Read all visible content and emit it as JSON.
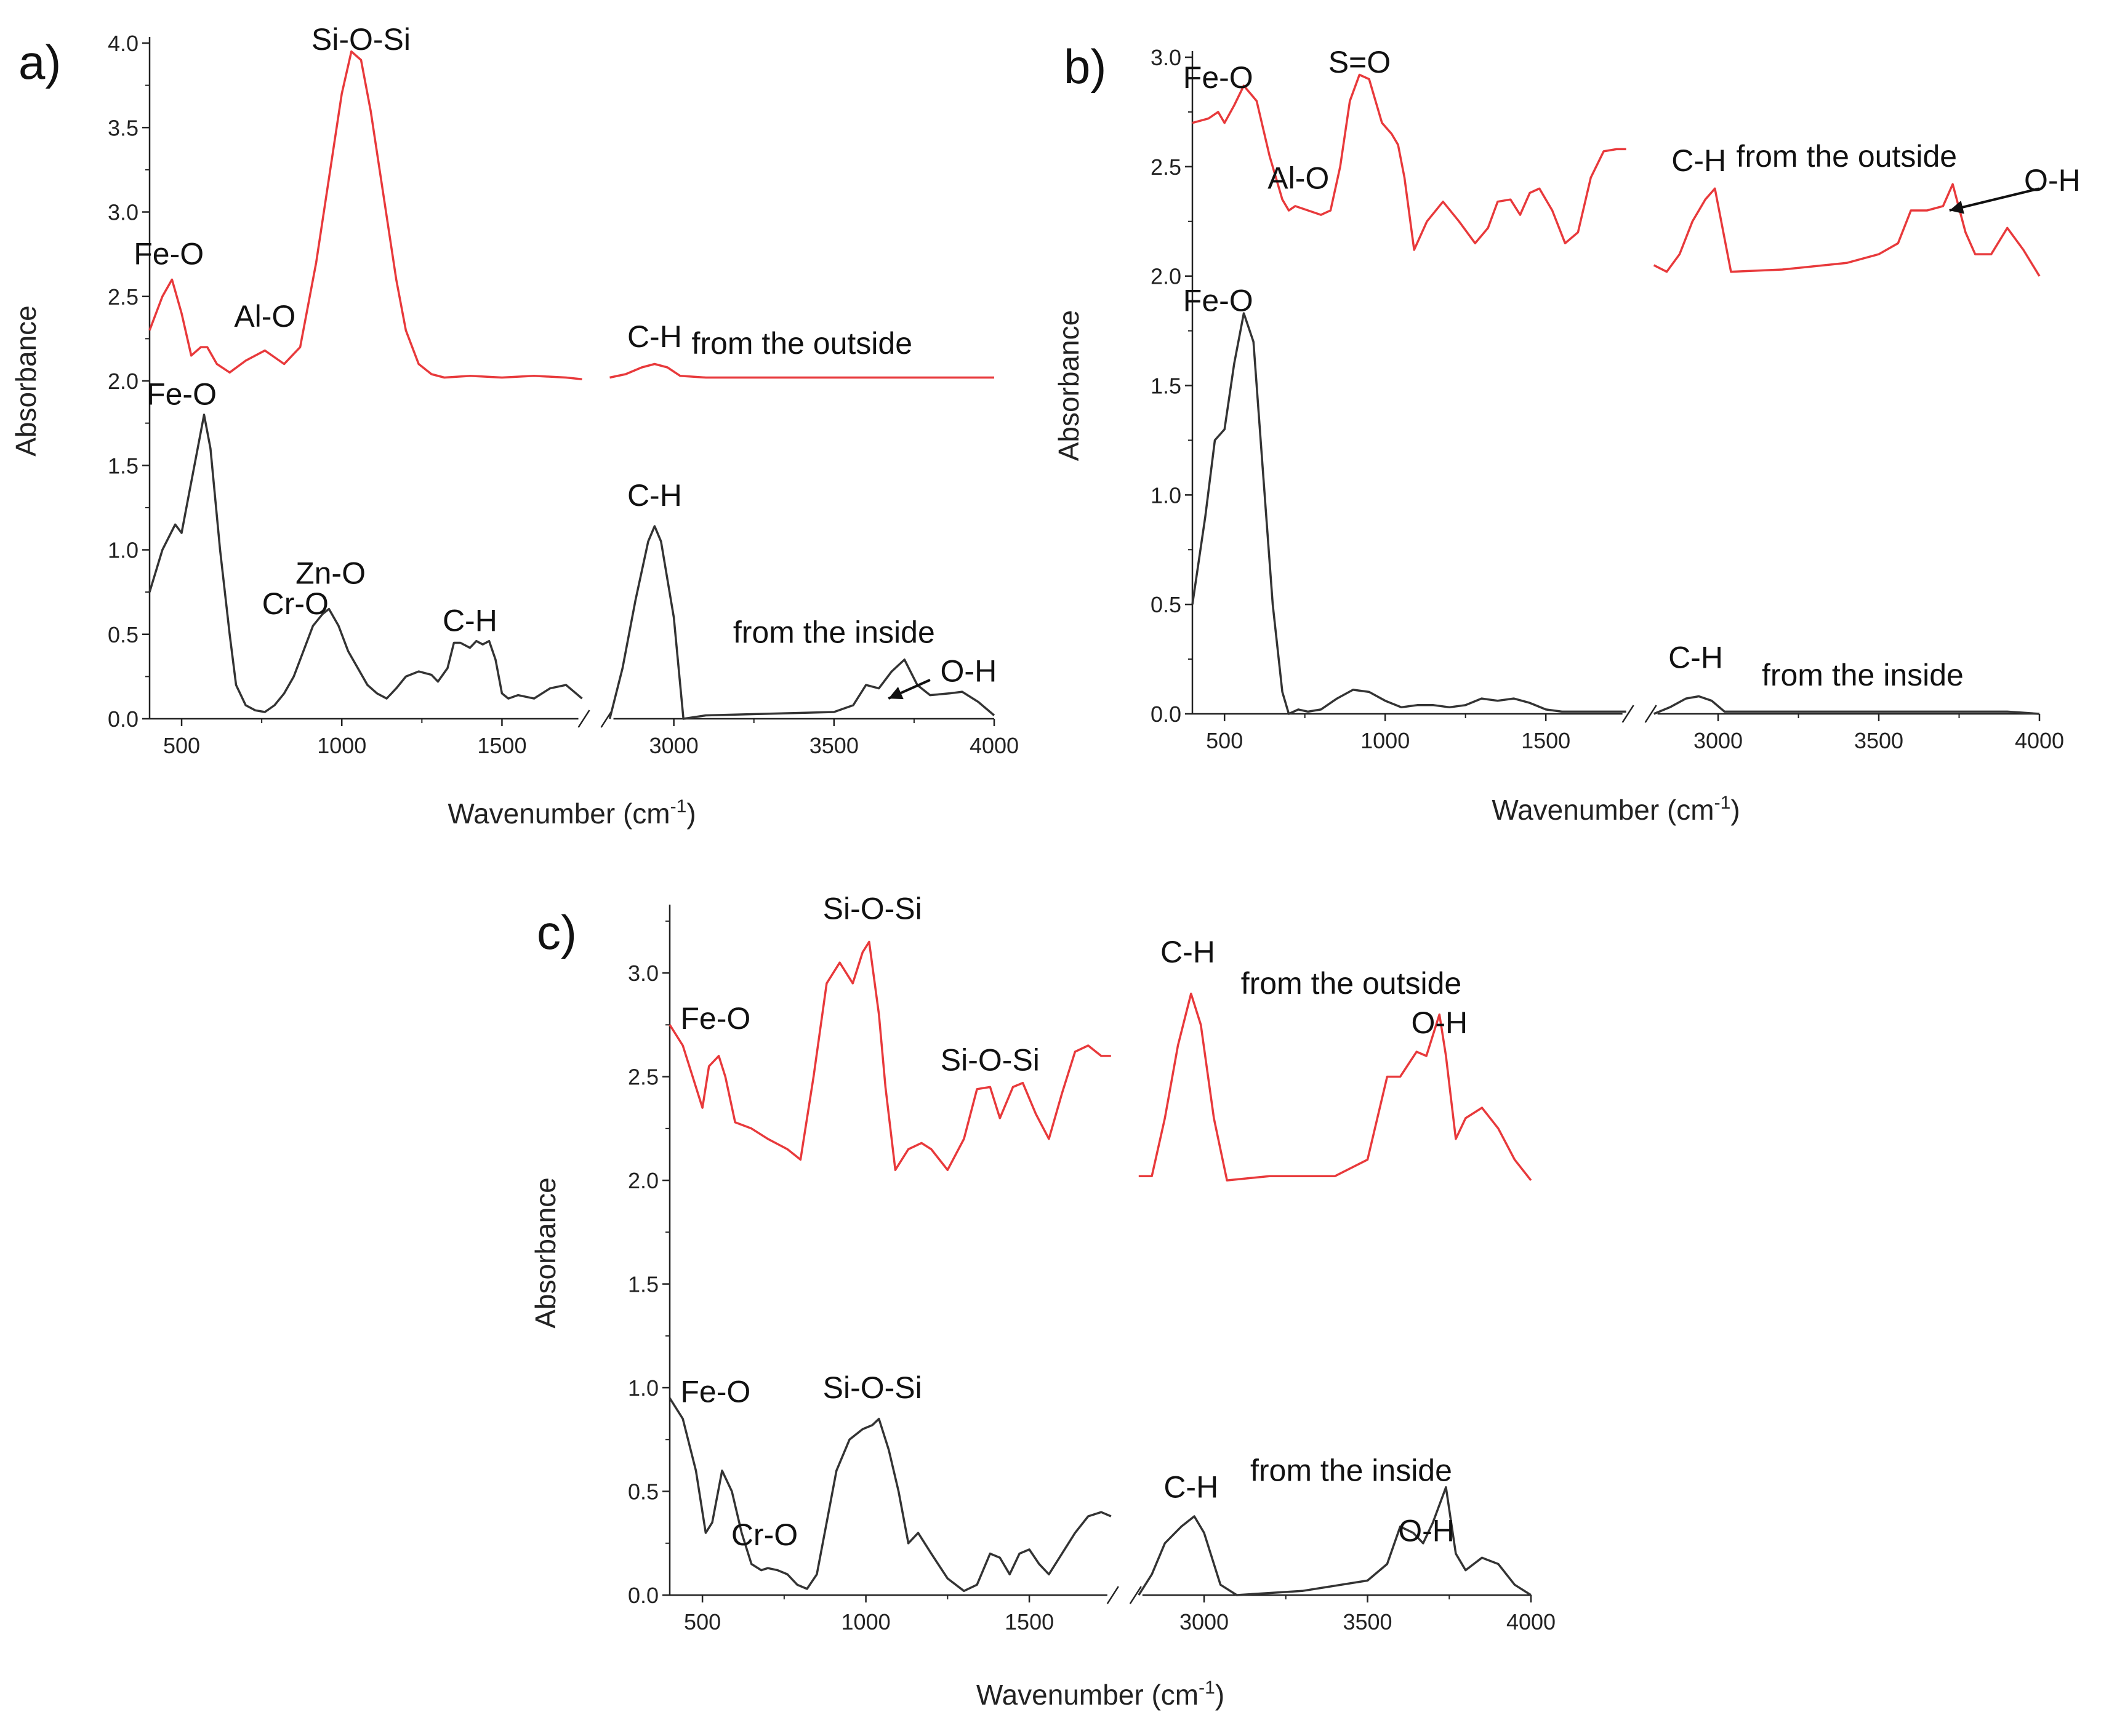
{
  "chart_data": [
    {
      "panel": "a)",
      "type": "line",
      "xlabel": "Wavenumber (cm",
      "xlabel_sup": "-1",
      "xlabel_close": ")",
      "ylabel": "Absorbance",
      "xlim": [
        400,
        4000
      ],
      "ylim": [
        0,
        4
      ],
      "axis_break": [
        1750,
        2800
      ],
      "xticks": [
        "500",
        "1000",
        "1500",
        "3000",
        "3500",
        "4000"
      ],
      "yticks": [
        "0.0",
        "0.5",
        "1.0",
        "1.5",
        "2.0",
        "2.5",
        "3.0",
        "3.5",
        "4.0"
      ],
      "series": [
        {
          "name": "from the outside",
          "color": "#e8393b",
          "x": [
            400,
            440,
            470,
            500,
            530,
            560,
            580,
            610,
            650,
            700,
            760,
            820,
            870,
            920,
            960,
            1000,
            1030,
            1060,
            1090,
            1130,
            1170,
            1200,
            1240,
            1280,
            1320,
            1400,
            1500,
            1600,
            1700,
            1750,
            2800,
            2850,
            2900,
            2940,
            2980,
            3020,
            3100,
            3300,
            3500,
            3700,
            3900,
            4000
          ],
          "y": [
            2.3,
            2.5,
            2.6,
            2.4,
            2.15,
            2.2,
            2.2,
            2.1,
            2.05,
            2.12,
            2.18,
            2.1,
            2.2,
            2.7,
            3.2,
            3.7,
            3.95,
            3.9,
            3.6,
            3.1,
            2.6,
            2.3,
            2.1,
            2.04,
            2.02,
            2.03,
            2.02,
            2.03,
            2.02,
            2.01,
            2.02,
            2.04,
            2.08,
            2.1,
            2.08,
            2.03,
            2.02,
            2.02,
            2.02,
            2.02,
            2.02,
            2.02
          ]
        },
        {
          "name": "from the inside",
          "color": "#333333",
          "x": [
            400,
            440,
            480,
            500,
            520,
            550,
            570,
            590,
            620,
            650,
            670,
            700,
            730,
            760,
            790,
            820,
            850,
            880,
            910,
            940,
            960,
            990,
            1020,
            1050,
            1080,
            1110,
            1140,
            1170,
            1200,
            1240,
            1280,
            1300,
            1330,
            1350,
            1370,
            1400,
            1420,
            1440,
            1460,
            1480,
            1500,
            1520,
            1550,
            1600,
            1650,
            1700,
            1750,
            2800,
            2840,
            2880,
            2920,
            2940,
            2960,
            3000,
            3030,
            3100,
            3300,
            3500,
            3560,
            3600,
            3640,
            3680,
            3720,
            3760,
            3800,
            3860,
            3900,
            3950,
            4000
          ],
          "y": [
            0.75,
            1.0,
            1.15,
            1.1,
            1.3,
            1.6,
            1.8,
            1.6,
            1.0,
            0.5,
            0.2,
            0.08,
            0.05,
            0.04,
            0.08,
            0.15,
            0.25,
            0.4,
            0.55,
            0.62,
            0.65,
            0.55,
            0.4,
            0.3,
            0.2,
            0.15,
            0.12,
            0.18,
            0.25,
            0.28,
            0.26,
            0.22,
            0.3,
            0.45,
            0.45,
            0.42,
            0.46,
            0.44,
            0.46,
            0.35,
            0.15,
            0.12,
            0.14,
            0.12,
            0.18,
            0.2,
            0.12,
            0.0,
            0.3,
            0.7,
            1.05,
            1.14,
            1.05,
            0.6,
            0.0,
            0.02,
            0.03,
            0.04,
            0.08,
            0.2,
            0.18,
            0.28,
            0.35,
            0.2,
            0.14,
            0.15,
            0.16,
            0.1,
            0.02
          ]
        }
      ],
      "annotations": [
        {
          "text": "Fe-O",
          "x": 460,
          "y": 2.69
        },
        {
          "text": "Al-O",
          "x": 760,
          "y": 2.32
        },
        {
          "text": "Si-O-Si",
          "x": 1060,
          "y": 3.96
        },
        {
          "text": "C-H",
          "x": 2940,
          "y": 2.2
        },
        {
          "text": "from the outside",
          "x": 3400,
          "y": 2.16
        },
        {
          "text": "Fe-O",
          "x": 500,
          "y": 1.86
        },
        {
          "text": "C-H",
          "x": 2940,
          "y": 1.26
        },
        {
          "text": "Zn-O",
          "x": 965,
          "y": 0.8
        },
        {
          "text": "Cr-O",
          "x": 855,
          "y": 0.62
        },
        {
          "text": "C-H",
          "x": 1400,
          "y": 0.52
        },
        {
          "text": "from the inside",
          "x": 3500,
          "y": 0.45
        },
        {
          "text": "O-H",
          "x": 3920,
          "y": 0.22
        }
      ],
      "arrow": {
        "from": [
          3800,
          0.23
        ],
        "to": [
          3670,
          0.12
        ]
      }
    },
    {
      "panel": "b)",
      "type": "line",
      "xlabel": "Wavenumber (cm",
      "xlabel_sup": "-1",
      "xlabel_close": ")",
      "ylabel": "Absorbance",
      "xlim": [
        400,
        4000
      ],
      "ylim": [
        0,
        3
      ],
      "axis_break": [
        1750,
        2800
      ],
      "xticks": [
        "500",
        "1000",
        "1500",
        "3000",
        "3500",
        "4000"
      ],
      "yticks": [
        "0.0",
        "0.5",
        "1.0",
        "1.5",
        "2.0",
        "2.5",
        "3.0"
      ],
      "series": [
        {
          "name": "from the outside",
          "color": "#e8393b",
          "x": [
            400,
            450,
            480,
            500,
            530,
            560,
            600,
            640,
            680,
            700,
            720,
            760,
            800,
            830,
            860,
            890,
            920,
            950,
            990,
            1020,
            1040,
            1060,
            1090,
            1130,
            1180,
            1230,
            1280,
            1320,
            1350,
            1390,
            1420,
            1450,
            1480,
            1520,
            1560,
            1600,
            1640,
            1680,
            1720,
            1750,
            2800,
            2840,
            2880,
            2920,
            2960,
            2990,
            3040,
            3200,
            3400,
            3500,
            3560,
            3600,
            3650,
            3700,
            3730,
            3770,
            3800,
            3850,
            3900,
            3950,
            4000
          ],
          "y": [
            2.7,
            2.72,
            2.75,
            2.7,
            2.78,
            2.87,
            2.8,
            2.55,
            2.35,
            2.3,
            2.32,
            2.3,
            2.28,
            2.3,
            2.5,
            2.8,
            2.92,
            2.9,
            2.7,
            2.65,
            2.6,
            2.45,
            2.12,
            2.25,
            2.34,
            2.25,
            2.15,
            2.22,
            2.34,
            2.35,
            2.28,
            2.38,
            2.4,
            2.3,
            2.15,
            2.2,
            2.45,
            2.57,
            2.58,
            2.58,
            2.05,
            2.02,
            2.1,
            2.25,
            2.35,
            2.4,
            2.02,
            2.03,
            2.06,
            2.1,
            2.15,
            2.3,
            2.3,
            2.32,
            2.42,
            2.2,
            2.1,
            2.1,
            2.22,
            2.12,
            2.0
          ]
        },
        {
          "name": "from the inside",
          "color": "#333333",
          "x": [
            400,
            440,
            470,
            500,
            530,
            560,
            590,
            620,
            650,
            680,
            700,
            730,
            760,
            800,
            850,
            900,
            950,
            1000,
            1050,
            1100,
            1150,
            1200,
            1250,
            1300,
            1350,
            1400,
            1450,
            1500,
            1550,
            1600,
            1700,
            1750,
            2800,
            2850,
            2900,
            2940,
            2980,
            3020,
            3100,
            3300,
            3500,
            3700,
            3900,
            4000
          ],
          "y": [
            0.5,
            0.9,
            1.25,
            1.3,
            1.6,
            1.83,
            1.7,
            1.1,
            0.5,
            0.1,
            0.0,
            0.02,
            0.01,
            0.02,
            0.07,
            0.11,
            0.1,
            0.06,
            0.03,
            0.04,
            0.04,
            0.03,
            0.04,
            0.07,
            0.06,
            0.07,
            0.05,
            0.02,
            0.01,
            0.01,
            0.01,
            0.01,
            0.0,
            0.03,
            0.07,
            0.08,
            0.06,
            0.01,
            0.01,
            0.01,
            0.01,
            0.01,
            0.01,
            0.0
          ]
        }
      ],
      "annotations": [
        {
          "text": "Fe-O",
          "x": 480,
          "y": 2.86
        },
        {
          "text": "S=O",
          "x": 920,
          "y": 2.93
        },
        {
          "text": "Al-O",
          "x": 730,
          "y": 2.4
        },
        {
          "text": "C-H",
          "x": 2940,
          "y": 2.48
        },
        {
          "text": "from the outside",
          "x": 3400,
          "y": 2.5
        },
        {
          "text": "O-H",
          "x": 4040,
          "y": 2.39
        },
        {
          "text": "Fe-O",
          "x": 480,
          "y": 1.84
        },
        {
          "text": "C-H",
          "x": 2930,
          "y": 0.21
        },
        {
          "text": "from the inside",
          "x": 3450,
          "y": 0.13
        }
      ],
      "arrow": {
        "from": [
          4000,
          2.4
        ],
        "to": [
          3720,
          2.3
        ]
      }
    },
    {
      "panel": "c)",
      "type": "line",
      "xlabel": "Wavenumber (cm",
      "xlabel_sup": "-1",
      "xlabel_close": ")",
      "ylabel": "Absorbance",
      "xlim": [
        400,
        4000
      ],
      "ylim": [
        0,
        3.3
      ],
      "axis_break": [
        1750,
        2800
      ],
      "xticks": [
        "500",
        "1000",
        "1500",
        "3000",
        "3500",
        "4000"
      ],
      "yticks": [
        "0.0",
        "0.5",
        "1.0",
        "1.5",
        "2.0",
        "2.5",
        "3.0"
      ],
      "series": [
        {
          "name": "from the outside",
          "color": "#e8393b",
          "x": [
            400,
            440,
            470,
            500,
            520,
            550,
            570,
            600,
            650,
            700,
            760,
            800,
            840,
            880,
            920,
            960,
            990,
            1010,
            1040,
            1060,
            1090,
            1130,
            1170,
            1200,
            1250,
            1300,
            1340,
            1380,
            1410,
            1450,
            1480,
            1520,
            1560,
            1600,
            1640,
            1680,
            1720,
            1750,
            2800,
            2840,
            2880,
            2920,
            2960,
            2990,
            3030,
            3070,
            3200,
            3400,
            3500,
            3560,
            3600,
            3650,
            3680,
            3720,
            3740,
            3770,
            3800,
            3850,
            3900,
            3950,
            4000
          ],
          "y": [
            2.75,
            2.65,
            2.5,
            2.35,
            2.55,
            2.6,
            2.5,
            2.28,
            2.25,
            2.2,
            2.15,
            2.1,
            2.5,
            2.95,
            3.05,
            2.95,
            3.1,
            3.15,
            2.8,
            2.45,
            2.05,
            2.15,
            2.18,
            2.15,
            2.05,
            2.2,
            2.44,
            2.45,
            2.3,
            2.45,
            2.47,
            2.32,
            2.2,
            2.42,
            2.62,
            2.65,
            2.6,
            2.6,
            2.02,
            2.02,
            2.3,
            2.65,
            2.9,
            2.75,
            2.3,
            2.0,
            2.02,
            2.02,
            2.1,
            2.5,
            2.5,
            2.62,
            2.6,
            2.8,
            2.6,
            2.2,
            2.3,
            2.35,
            2.25,
            2.1,
            2.0
          ]
        },
        {
          "name": "from the inside",
          "color": "#333333",
          "x": [
            400,
            440,
            480,
            510,
            530,
            560,
            590,
            620,
            650,
            680,
            700,
            730,
            760,
            790,
            820,
            850,
            880,
            910,
            950,
            990,
            1020,
            1040,
            1070,
            1100,
            1130,
            1160,
            1200,
            1250,
            1300,
            1340,
            1380,
            1410,
            1440,
            1470,
            1500,
            1530,
            1560,
            1600,
            1640,
            1680,
            1720,
            1750,
            2800,
            2840,
            2880,
            2930,
            2970,
            3000,
            3050,
            3100,
            3300,
            3500,
            3560,
            3600,
            3640,
            3670,
            3700,
            3740,
            3770,
            3800,
            3850,
            3900,
            3950,
            4000
          ],
          "y": [
            0.95,
            0.85,
            0.6,
            0.3,
            0.35,
            0.6,
            0.5,
            0.3,
            0.15,
            0.12,
            0.13,
            0.12,
            0.1,
            0.05,
            0.03,
            0.1,
            0.35,
            0.6,
            0.75,
            0.8,
            0.82,
            0.85,
            0.7,
            0.5,
            0.25,
            0.3,
            0.2,
            0.08,
            0.02,
            0.05,
            0.2,
            0.18,
            0.1,
            0.2,
            0.22,
            0.15,
            0.1,
            0.2,
            0.3,
            0.38,
            0.4,
            0.38,
            0.0,
            0.1,
            0.25,
            0.33,
            0.38,
            0.3,
            0.05,
            0.0,
            0.02,
            0.07,
            0.15,
            0.33,
            0.3,
            0.25,
            0.35,
            0.52,
            0.2,
            0.12,
            0.18,
            0.15,
            0.05,
            0.0
          ]
        }
      ],
      "annotations": [
        {
          "text": "Fe-O",
          "x": 540,
          "y": 2.73
        },
        {
          "text": "Si-O-Si",
          "x": 1020,
          "y": 3.26
        },
        {
          "text": "Si-O-Si",
          "x": 1380,
          "y": 2.53
        },
        {
          "text": "C-H",
          "x": 2950,
          "y": 3.05
        },
        {
          "text": "from the outside",
          "x": 3450,
          "y": 2.9
        },
        {
          "text": "O-H",
          "x": 3720,
          "y": 2.71
        },
        {
          "text": "Fe-O",
          "x": 540,
          "y": 0.93
        },
        {
          "text": "Si-O-Si",
          "x": 1020,
          "y": 0.95
        },
        {
          "text": "Cr-O",
          "x": 690,
          "y": 0.24
        },
        {
          "text": "C-H",
          "x": 2960,
          "y": 0.47
        },
        {
          "text": "from the inside",
          "x": 3450,
          "y": 0.55
        },
        {
          "text": "O-H",
          "x": 3680,
          "y": 0.26
        }
      ]
    }
  ]
}
